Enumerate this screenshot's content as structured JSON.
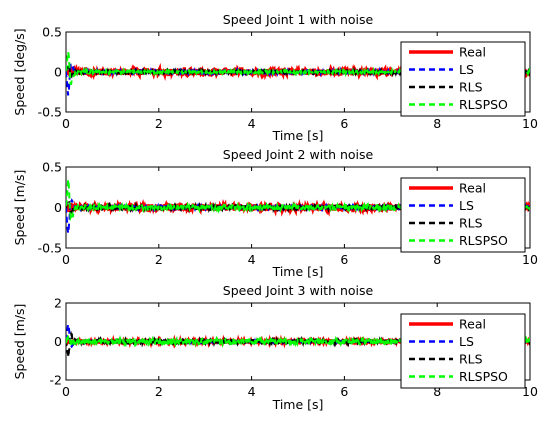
{
  "chart_data": [
    {
      "type": "line",
      "title": "Speed Joint 1 with noise",
      "xlabel": "Time [s]",
      "ylabel": "Speed [deg/s]",
      "xlim": [
        0,
        10
      ],
      "ylim": [
        -0.5,
        0.5
      ],
      "xticks": [
        0,
        2,
        4,
        6,
        8,
        10
      ],
      "yticks": [
        -0.5,
        0,
        0.5
      ],
      "ytick_labels": [
        "-0.5",
        "0",
        "0.5"
      ],
      "legend_position": "top-right",
      "series": [
        {
          "name": "Real",
          "color": "#ff0000",
          "style": "solid",
          "noise": 0.04,
          "peak": 0.0,
          "x": [
            0,
            2,
            4,
            6,
            8,
            10
          ],
          "y": [
            0,
            0,
            0,
            0,
            0,
            0
          ]
        },
        {
          "name": "LS",
          "color": "#0000ff",
          "style": "dashed",
          "noise": 0.02,
          "peak": -0.3,
          "x": [
            0,
            0.05,
            0.1,
            0.2,
            10
          ],
          "y": [
            0,
            -0.3,
            0.1,
            0,
            0
          ]
        },
        {
          "name": "RLS",
          "color": "#000000",
          "style": "dashed",
          "noise": 0.02,
          "peak": 0.1,
          "x": [
            0,
            0.05,
            0.1,
            0.2,
            10
          ],
          "y": [
            0,
            0.1,
            -0.05,
            0,
            0
          ]
        },
        {
          "name": "RLSPSO",
          "color": "#00ff00",
          "style": "dashed",
          "noise": 0.02,
          "peak": 0.28,
          "x": [
            0,
            0.05,
            0.1,
            0.2,
            10
          ],
          "y": [
            0,
            0.28,
            -0.15,
            0,
            0
          ]
        }
      ]
    },
    {
      "type": "line",
      "title": "Speed Joint 2 with noise",
      "xlabel": "Time [s]",
      "ylabel": "Speed [m/s]",
      "xlim": [
        0,
        10
      ],
      "ylim": [
        -0.5,
        0.5
      ],
      "xticks": [
        0,
        2,
        4,
        6,
        8,
        10
      ],
      "yticks": [
        -0.5,
        0,
        0.5
      ],
      "ytick_labels": [
        "-0.5",
        "0",
        "0.5"
      ],
      "legend_position": "top-right",
      "series": [
        {
          "name": "Real",
          "color": "#ff0000",
          "style": "solid",
          "noise": 0.04,
          "peak": 0.0,
          "x": [
            0,
            2,
            4,
            6,
            8,
            10
          ],
          "y": [
            0,
            0,
            0,
            0,
            0,
            0
          ]
        },
        {
          "name": "LS",
          "color": "#0000ff",
          "style": "dashed",
          "noise": 0.02,
          "peak": -0.35,
          "x": [
            0,
            0.05,
            0.1,
            0.2,
            10
          ],
          "y": [
            0,
            -0.35,
            0.1,
            0,
            0
          ]
        },
        {
          "name": "RLS",
          "color": "#000000",
          "style": "dashed",
          "noise": 0.03,
          "peak": 0.1,
          "x": [
            0,
            0.05,
            0.1,
            0.2,
            10
          ],
          "y": [
            0,
            0.1,
            -0.05,
            0,
            0
          ]
        },
        {
          "name": "RLSPSO",
          "color": "#00ff00",
          "style": "dashed",
          "noise": 0.03,
          "peak": 0.35,
          "x": [
            0,
            0.05,
            0.1,
            0.2,
            10
          ],
          "y": [
            0,
            0.35,
            -0.15,
            0,
            0
          ]
        }
      ]
    },
    {
      "type": "line",
      "title": "Speed Joint 3 with noise",
      "xlabel": "Time [s]",
      "ylabel": "Speed [m/s]",
      "xlim": [
        0,
        10
      ],
      "ylim": [
        -2,
        2
      ],
      "xticks": [
        0,
        2,
        4,
        6,
        8,
        10
      ],
      "yticks": [
        -2,
        0,
        2
      ],
      "ytick_labels": [
        "-2",
        "0",
        "2"
      ],
      "legend_position": "top-right",
      "series": [
        {
          "name": "Real",
          "color": "#ff0000",
          "style": "solid",
          "noise": 0.05,
          "peak": 0.0,
          "x": [
            0,
            2,
            4,
            6,
            8,
            10
          ],
          "y": [
            0,
            0,
            0,
            0,
            0,
            0
          ]
        },
        {
          "name": "LS",
          "color": "#0000ff",
          "style": "dashed",
          "noise": 0.04,
          "peak": 1.0,
          "x": [
            0,
            0.05,
            0.1,
            0.2,
            10
          ],
          "y": [
            0,
            1.0,
            -0.3,
            0,
            0
          ]
        },
        {
          "name": "RLS",
          "color": "#000000",
          "style": "dashed",
          "noise": 0.12,
          "peak": -0.8,
          "x": [
            0,
            0.05,
            0.1,
            0.2,
            10
          ],
          "y": [
            0,
            -0.8,
            0.3,
            0,
            0
          ]
        },
        {
          "name": "RLSPSO",
          "color": "#00ff00",
          "style": "dashed",
          "noise": 0.15,
          "peak": 0.3,
          "x": [
            0,
            0.05,
            0.1,
            0.2,
            10
          ],
          "y": [
            0,
            0.3,
            -0.1,
            0,
            0
          ]
        }
      ]
    }
  ]
}
